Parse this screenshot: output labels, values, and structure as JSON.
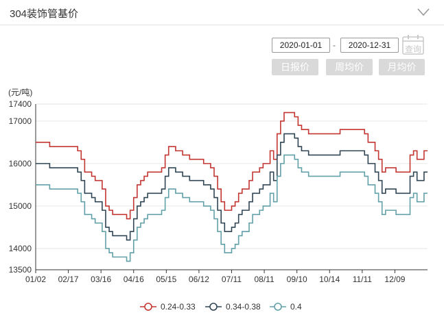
{
  "header": {
    "title": "304装饰管基价"
  },
  "filters": {
    "start_date": "2020-01-01",
    "separator": "-",
    "end_date": "2020-12-31",
    "query_label": "查询",
    "periods": [
      "日报价",
      "周均价",
      "月均价"
    ]
  },
  "chart_data": {
    "type": "line",
    "unit": "(元/吨)",
    "x_ticks": [
      "01/02",
      "02/17",
      "03/16",
      "04/16",
      "05/15",
      "06/12",
      "07/11",
      "08/11",
      "09/10",
      "10/14",
      "11/11",
      "12/09"
    ],
    "ylim": [
      13500,
      17400
    ],
    "y_ticks": [
      13500,
      14000,
      15000,
      16000,
      17000,
      17400
    ],
    "grid": true,
    "legend_position": "bottom",
    "colors": [
      "#c23531",
      "#2f4554",
      "#61a0a8"
    ],
    "series": [
      {
        "name": "0.24-0.33",
        "color": "#c23531",
        "values": [
          16500,
          16500,
          16500,
          16500,
          16400,
          16400,
          16400,
          16400,
          16400,
          16400,
          16400,
          16400,
          16300,
          16100,
          15800,
          15800,
          15700,
          15600,
          15600,
          15400,
          15000,
          14900,
          14800,
          14800,
          14800,
          14800,
          14700,
          14900,
          15200,
          15500,
          15600,
          15700,
          15800,
          15800,
          15800,
          15800,
          15900,
          16200,
          16400,
          16400,
          16300,
          16300,
          16200,
          16200,
          16100,
          16100,
          16100,
          16100,
          16000,
          16000,
          15900,
          15700,
          15400,
          15100,
          14900,
          14900,
          15000,
          15100,
          15300,
          15400,
          15400,
          15600,
          15800,
          15800,
          15900,
          16000,
          16000,
          16300,
          16100,
          16700,
          17000,
          17200,
          17200,
          17200,
          17100,
          16900,
          16800,
          16800,
          16700,
          16700,
          16700,
          16700,
          16700,
          16700,
          16700,
          16700,
          16700,
          16800,
          16800,
          16800,
          16800,
          16800,
          16800,
          16800,
          16700,
          16500,
          16500,
          16300,
          16100,
          15800,
          15900,
          15900,
          15900,
          15800,
          15800,
          15800,
          15800,
          16200,
          16300,
          16100,
          16100,
          16300,
          16300
        ]
      },
      {
        "name": "0.34-0.38",
        "color": "#2f4554",
        "values": [
          16000,
          16000,
          16000,
          16000,
          15900,
          15900,
          15900,
          15900,
          15900,
          15900,
          15900,
          15900,
          15800,
          15600,
          15300,
          15300,
          15200,
          15100,
          15100,
          14900,
          14500,
          14400,
          14300,
          14300,
          14300,
          14300,
          14200,
          14400,
          14700,
          15000,
          15100,
          15200,
          15300,
          15300,
          15300,
          15300,
          15400,
          15700,
          15900,
          15900,
          15800,
          15800,
          15700,
          15700,
          15600,
          15600,
          15600,
          15600,
          15500,
          15500,
          15400,
          15200,
          14900,
          14600,
          14400,
          14400,
          14500,
          14600,
          14800,
          14900,
          14900,
          15100,
          15300,
          15300,
          15400,
          15500,
          15500,
          15800,
          15600,
          16200,
          16500,
          16700,
          16700,
          16700,
          16600,
          16400,
          16300,
          16300,
          16200,
          16200,
          16200,
          16200,
          16200,
          16200,
          16200,
          16200,
          16200,
          16300,
          16300,
          16300,
          16300,
          16300,
          16300,
          16300,
          16200,
          16000,
          16000,
          15800,
          15600,
          15300,
          15400,
          15400,
          15400,
          15300,
          15300,
          15300,
          15300,
          15700,
          15800,
          15600,
          15600,
          15800,
          15800
        ]
      },
      {
        "name": "0.4",
        "color": "#61a0a8",
        "values": [
          15500,
          15500,
          15500,
          15500,
          15400,
          15400,
          15400,
          15400,
          15400,
          15400,
          15400,
          15400,
          15300,
          15100,
          14800,
          14800,
          14700,
          14600,
          14600,
          14400,
          14000,
          13900,
          13800,
          13800,
          13800,
          13800,
          13700,
          13900,
          14200,
          14500,
          14600,
          14700,
          14800,
          14800,
          14800,
          14800,
          14900,
          15200,
          15400,
          15400,
          15300,
          15300,
          15200,
          15200,
          15100,
          15100,
          15100,
          15100,
          15000,
          15000,
          14900,
          14700,
          14400,
          14100,
          13900,
          13900,
          14000,
          14100,
          14300,
          14400,
          14400,
          14600,
          14800,
          14800,
          14900,
          15000,
          15000,
          15300,
          15100,
          15700,
          16000,
          16200,
          16200,
          16200,
          16100,
          15900,
          15800,
          15800,
          15700,
          15700,
          15700,
          15700,
          15700,
          15700,
          15700,
          15700,
          15700,
          15800,
          15800,
          15800,
          15800,
          15800,
          15800,
          15800,
          15700,
          15500,
          15500,
          15300,
          15100,
          14800,
          14900,
          14900,
          14900,
          14800,
          14800,
          14800,
          14800,
          15200,
          15300,
          15100,
          15100,
          15300,
          15300
        ]
      }
    ]
  }
}
